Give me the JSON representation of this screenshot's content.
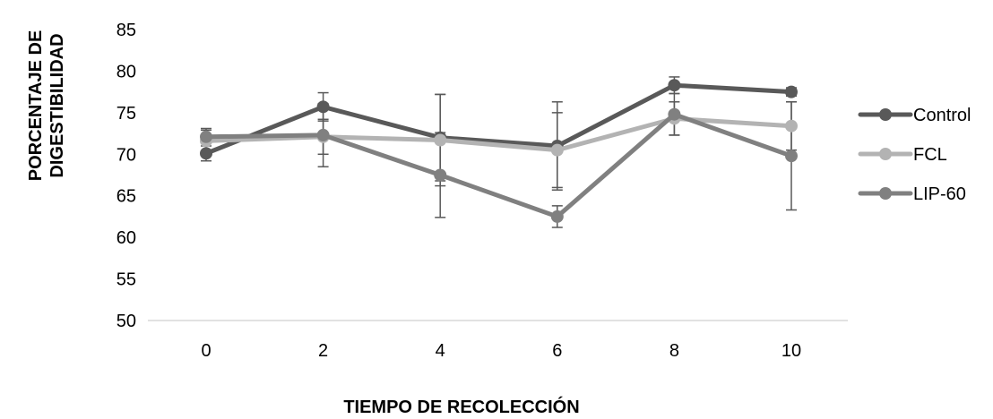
{
  "chart_data": {
    "type": "line",
    "xlabel": "TIEMPO DE RECOLECCIÓN",
    "ylabel_lines": [
      "PORCENTAJE DE",
      "DIGESTIBILIDAD"
    ],
    "categories": [
      "0",
      "2",
      "4",
      "6",
      "8",
      "10"
    ],
    "ylim": [
      50,
      85
    ],
    "yticks": [
      50,
      55,
      60,
      65,
      70,
      75,
      80,
      85
    ],
    "grid": false,
    "legend_position": "right",
    "series": [
      {
        "name": "Control",
        "color": "#595959",
        "values": [
          70.1,
          75.7,
          72.0,
          71.0,
          78.3,
          77.5
        ],
        "error": [
          0.9,
          1.7,
          5.2,
          5.3,
          1.0,
          0.5
        ]
      },
      {
        "name": "FCL",
        "color": "#b3b3b3",
        "values": [
          71.6,
          72.1,
          71.7,
          70.5,
          74.3,
          73.4
        ],
        "error": [
          1.5,
          2.1,
          5.5,
          4.5,
          2.0,
          2.9
        ]
      },
      {
        "name": "LIP-60",
        "color": "#808080",
        "values": [
          72.1,
          72.3,
          67.5,
          62.5,
          74.8,
          69.8
        ],
        "error": [
          0.8,
          3.8,
          5.1,
          1.3,
          2.5,
          6.5
        ]
      }
    ]
  }
}
